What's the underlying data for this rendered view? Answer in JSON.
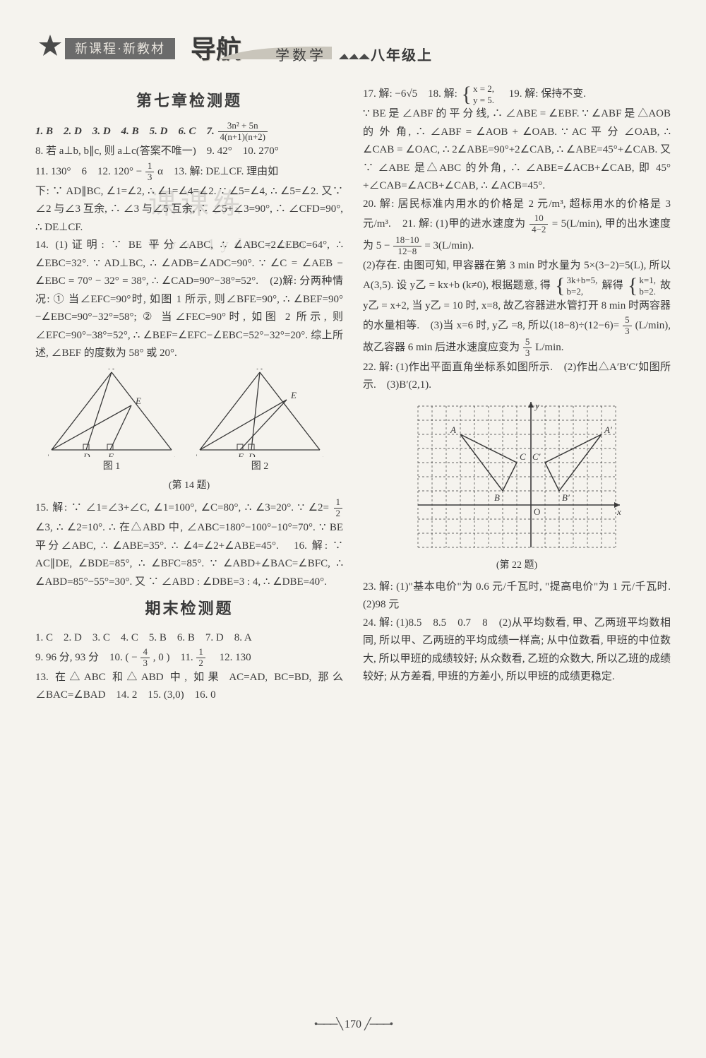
{
  "header": {
    "series": "新课程·新教材",
    "logo": "导航",
    "subject": "学数学",
    "grade": "八年级上",
    "star_color": "#4a4a4a",
    "banner_bg": "#6b6b6b",
    "banner_fg": "#e9e5de"
  },
  "page_number": "170",
  "watermark": {
    "line1": "课课练",
    "line2": "www.1ydt.com"
  },
  "left": {
    "chapter_title": "第七章检测题",
    "exam_title": "期末检测题",
    "fig_caption": "(第 14 题)",
    "fig1_label": "图 1",
    "fig2_label": "图 2",
    "p1_a": "1. B　2. D　3. D　4. B　5. D　6. C　7. ",
    "p1_frac_num": "3n² + 5n",
    "p1_frac_den": "4(n+1)(n+2)",
    "p2": "8. 若 a⊥b, b∥c, 则 a⊥c(答案不唯一)　9. 42°　10. 270°",
    "p3_a": "11. 130°　6　12. 120° − ",
    "p3_frac_num": "1",
    "p3_frac_den": "3",
    "p3_b": "α　13. 解: DE⊥CF. 理由如",
    "p4": "下: ∵ AD∥BC, ∠1=∠2, ∴ ∠1=∠4=∠2. ∵ ∠5=∠4, ∴ ∠5=∠2. 又∵ ∠2 与∠3 互余, ∴ ∠3 与∠5 互余, ∴ ∠5+∠3=90°, ∴ ∠CFD=90°, ∴ DE⊥CF.",
    "p5": "14. (1)证明: ∵ BE 平分∠ABC, ∴ ∠ABC=2∠EBC=64°, ∴ ∠EBC=32°. ∵ AD⊥BC, ∴ ∠ADB=∠ADC=90°. ∵ ∠C = ∠AEB − ∠EBC = 70° − 32° = 38°, ∴ ∠CAD=90°−38°=52°.　(2)解: 分两种情况: ① 当∠EFC=90°时, 如图 1 所示, 则∠BFE=90°, ∴ ∠BEF=90°−∠EBC=90°−32°=58°; ② 当∠FEC=90°时, 如图 2 所示, 则∠EFC=90°−38°=52°, ∴ ∠BEF=∠EFC−∠EBC=52°−32°=20°. 综上所述, ∠BEF 的度数为 58° 或 20°.",
    "p6_a": "15. 解: ∵ ∠1=∠3+∠C, ∠1=100°, ∠C=80°, ∴ ∠3=20°. ∵ ∠2= ",
    "p6_frac_num": "1",
    "p6_frac_den": "2",
    "p6_b": "∠3, ∴ ∠2=10°. ∴ 在△ABD 中, ∠ABC=180°−100°−10°=70°. ∵ BE 平分∠ABC, ∴ ∠ABE=35°. ∴ ∠4=∠2+∠ABE=45°.　16. 解: ∵ AC∥DE, ∠BDE=85°, ∴ ∠BFC=85°. ∵ ∠ABD+∠BAC=∠BFC, ∴ ∠ABD=85°−55°=30°. 又 ∵ ∠ABD : ∠DBE=3 : 4, ∴ ∠DBE=40°.",
    "e1": "1. C　2. D　3. C　4. C　5. B　6. B　7. D　8. A",
    "e2_a": "9. 96 分, 93 分　10. ( − ",
    "e2_frac_num": "4",
    "e2_frac_den": "3",
    "e2_b": " , 0 )　11. ",
    "e2_frac2_num": "1",
    "e2_frac2_den": "2",
    "e2_c": "　12. 130",
    "e3": "13. 在△ABC 和△ABD 中, 如果 AC=AD, BC=BD, 那么∠BAC=∠BAD　14. 2　15. (3,0)　16. 0"
  },
  "right": {
    "r1_a": "17. 解: −6√5　18. 解: ",
    "sys18_a": "x = 2,",
    "sys18_b": "y = 5.",
    "r1_b": "　19. 解: 保持不变.",
    "r2": "∵ BE 是 ∠ABF 的 平 分 线, ∴ ∠ABE = ∠EBF. ∵ ∠ABF 是 △AOB 的 外 角, ∴ ∠ABF = ∠AOB + ∠OAB. ∵ AC 平 分 ∠OAB, ∴ ∠CAB = ∠OAC, ∴ 2∠ABE=90°+2∠CAB, ∴ ∠ABE=45°+∠CAB. 又∵ ∠ABE 是△ABC 的外角, ∴ ∠ABE=∠ACB+∠CAB, 即 45°+∠CAB=∠ACB+∠CAB, ∴ ∠ACB=45°.",
    "r3_a": "20. 解: 居民标准内用水的价格是 2 元/m³, 超标用水的价格是 3 元/m³.　21. 解: (1)甲的进水速度为 ",
    "r3_frac_num": "10",
    "r3_frac_den": "4−2",
    "r3_b": " = 5(L/min), 甲的出水速度为 5 − ",
    "r3_frac2_num": "18−10",
    "r3_frac2_den": "12−8",
    "r3_c": " = 3(L/min).",
    "r4_a": "(2)存在. 由图可知, 甲容器在第 3 min 时水量为 5×(3−2)=5(L), 所以 A(3,5). 设 y乙 = kx+b (k≠0), 根据题意, 得 ",
    "sys21a_a": "3k+b=5,",
    "sys21a_b": "b=2,",
    "r4_b": " 解得 ",
    "sys21b_a": "k=1,",
    "sys21b_b": "b=2.",
    "r4_c": " 故 y乙 = x+2, 当 y乙 = 10 时, x=8, 故乙容器进水管打开 8 min 时两容器的水量相等.　(3)当 x=6 时, y乙 =8, 所以(18−8)÷(12−6)= ",
    "r4_frac_num": "5",
    "r4_frac_den": "3",
    "r4_d": "(L/min), 故乙容器 6 min 后进水速度应变为 ",
    "r4_frac2_num": "5",
    "r4_frac2_den": "3",
    "r4_e": " L/min.",
    "r5": "22. 解: (1)作出平面直角坐标系如图所示.　(2)作出△A′B′C′如图所示.　(3)B′(2,1).",
    "grid_caption": "(第 22 题)",
    "r6": "23. 解: (1)\"基本电价\"为 0.6 元/千瓦时, \"提高电价\"为 1 元/千瓦时.　(2)98 元",
    "r7": "24. 解: (1)8.5　8.5　0.7　8　(2)从平均数看, 甲、乙两班平均数相同, 所以甲、乙两班的平均成绩一样高; 从中位数看, 甲班的中位数大, 所以甲班的成绩较好; 从众数看, 乙班的众数大, 所以乙班的成绩较好; 从方差看, 甲班的方差小, 所以甲班的成绩更稳定."
  },
  "triangles": {
    "stroke": "#3a3a3a",
    "fig1": {
      "A": [
        90,
        5
      ],
      "B": [
        5,
        115
      ],
      "C": [
        175,
        115
      ],
      "D": [
        54,
        115
      ],
      "E": [
        118,
        52
      ],
      "F": [
        88,
        115
      ]
    },
    "fig2": {
      "A": [
        90,
        5
      ],
      "B": [
        5,
        115
      ],
      "C": [
        175,
        115
      ],
      "D": [
        78,
        115
      ],
      "E": [
        128,
        44
      ],
      "F": [
        62,
        115
      ]
    }
  },
  "grid": {
    "size": 20,
    "cols": 14,
    "rows": 10,
    "origin_col": 8,
    "origin_row": 7,
    "stroke": "#3a3a3a",
    "dash": "3 3",
    "x_label": "x",
    "y_label": "y",
    "o_label": "O",
    "tri1": {
      "A": [
        -5,
        5
      ],
      "B": [
        -2,
        1
      ],
      "C": [
        -1,
        3
      ]
    },
    "tri2": {
      "Ap": [
        5,
        5
      ],
      "Bp": [
        2,
        1
      ],
      "Cp": [
        1,
        3
      ]
    },
    "labels": {
      "A": "A",
      "B": "B",
      "C": "C",
      "Ap": "A′",
      "Bp": "B′",
      "Cp": "C′"
    }
  }
}
